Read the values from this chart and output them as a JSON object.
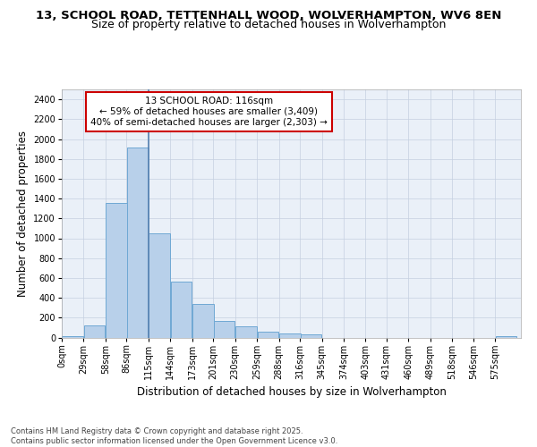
{
  "title1": "13, SCHOOL ROAD, TETTENHALL WOOD, WOLVERHAMPTON, WV6 8EN",
  "title2": "Size of property relative to detached houses in Wolverhampton",
  "xlabel": "Distribution of detached houses by size in Wolverhampton",
  "ylabel": "Number of detached properties",
  "bar_color": "#b8d0ea",
  "bar_edge_color": "#6fa8d4",
  "vline_color": "#5580b0",
  "annotation_text": "13 SCHOOL ROAD: 116sqm\n← 59% of detached houses are smaller (3,409)\n40% of semi-detached houses are larger (2,303) →",
  "annotation_box_facecolor": "#ffffff",
  "annotation_border_color": "#cc0000",
  "property_size_bin": 4,
  "bins_left": [
    0,
    29,
    58,
    86,
    115,
    144,
    173,
    201,
    230,
    259,
    288,
    316,
    345,
    374,
    403,
    431,
    460,
    489,
    518,
    546,
    575
  ],
  "bin_width": 29,
  "values": [
    10,
    120,
    1360,
    1910,
    1050,
    560,
    335,
    170,
    110,
    62,
    38,
    28,
    0,
    0,
    0,
    0,
    0,
    0,
    0,
    0,
    10
  ],
  "ylim": [
    0,
    2500
  ],
  "yticks": [
    0,
    200,
    400,
    600,
    800,
    1000,
    1200,
    1400,
    1600,
    1800,
    2000,
    2200,
    2400
  ],
  "bg_color": "#eaf0f8",
  "footer": "Contains HM Land Registry data © Crown copyright and database right 2025.\nContains public sector information licensed under the Open Government Licence v3.0.",
  "title1_fontsize": 9.5,
  "title2_fontsize": 9,
  "axis_label_fontsize": 8.5,
  "tick_fontsize": 7,
  "annotation_fontsize": 7.5,
  "footer_fontsize": 6
}
